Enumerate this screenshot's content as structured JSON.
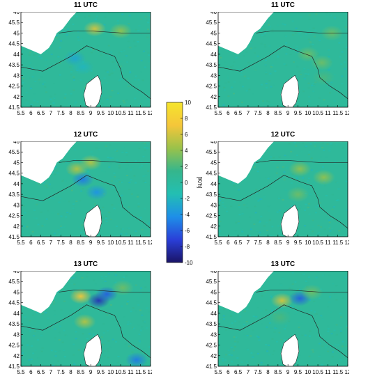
{
  "chart_data": {
    "type": "heatmap",
    "colorbar": {
      "label": "[K/h]",
      "range": [
        -10,
        10
      ],
      "ticks": [
        10,
        8,
        6,
        4,
        2,
        0,
        -2,
        -4,
        -6,
        -8,
        -10
      ],
      "colors": [
        "#1a1466",
        "#2a3fd8",
        "#1e8fe8",
        "#23bfb2",
        "#35b68c",
        "#9ac24a",
        "#f5c63a",
        "#f5e52c"
      ]
    },
    "x_ticks": [
      "5.5",
      "6",
      "6.5",
      "7",
      "7.5",
      "8",
      "8.5",
      "9",
      "9.5",
      "10",
      "10.5",
      "11",
      "11.5",
      "12"
    ],
    "y_ticks": [
      "46",
      "45.5",
      "45",
      "44.5",
      "44",
      "43.5",
      "43",
      "42.5",
      "42",
      "41.5"
    ],
    "xlim": [
      5.5,
      12
    ],
    "ylim": [
      41.5,
      46
    ],
    "panels": [
      {
        "title": "11 UTC",
        "hotspots": [
          {
            "lon": 9.2,
            "lat": 45.2,
            "v": 6
          },
          {
            "lon": 10.5,
            "lat": 45.1,
            "v": 4
          },
          {
            "lon": 8.2,
            "lat": 43.8,
            "v": -3
          },
          {
            "lon": 8.6,
            "lat": 43.4,
            "v": -2
          }
        ]
      },
      {
        "title": "11 UTC",
        "hotspots": [
          {
            "lon": 10.0,
            "lat": 44.0,
            "v": 3
          },
          {
            "lon": 11.2,
            "lat": 45.0,
            "v": 3
          },
          {
            "lon": 10.7,
            "lat": 43.6,
            "v": 3
          },
          {
            "lon": 10.8,
            "lat": 42.9,
            "v": 2
          }
        ]
      },
      {
        "title": "12 UTC",
        "hotspots": [
          {
            "lon": 8.3,
            "lat": 44.7,
            "v": 5
          },
          {
            "lon": 9.0,
            "lat": 45.0,
            "v": 5
          },
          {
            "lon": 8.6,
            "lat": 44.2,
            "v": -5
          },
          {
            "lon": 9.3,
            "lat": 43.6,
            "v": -4
          }
        ]
      },
      {
        "title": "12 UTC",
        "hotspots": [
          {
            "lon": 9.6,
            "lat": 44.7,
            "v": 4
          },
          {
            "lon": 10.8,
            "lat": 44.3,
            "v": 4
          },
          {
            "lon": 9.5,
            "lat": 43.5,
            "v": 3
          }
        ]
      },
      {
        "title": "13 UTC",
        "hotspots": [
          {
            "lon": 8.5,
            "lat": 44.8,
            "v": 7
          },
          {
            "lon": 8.7,
            "lat": 43.6,
            "v": 5
          },
          {
            "lon": 9.4,
            "lat": 44.6,
            "v": -8
          },
          {
            "lon": 9.8,
            "lat": 44.9,
            "v": -6
          },
          {
            "lon": 10.6,
            "lat": 45.2,
            "v": 3
          },
          {
            "lon": 11.3,
            "lat": 41.8,
            "v": -5
          }
        ]
      },
      {
        "title": "13 UTC",
        "hotspots": [
          {
            "lon": 8.7,
            "lat": 44.6,
            "v": 6
          },
          {
            "lon": 9.6,
            "lat": 44.7,
            "v": -6
          },
          {
            "lon": 10.2,
            "lat": 45.0,
            "v": 3
          },
          {
            "lon": 8.6,
            "lat": 43.8,
            "v": 2
          }
        ]
      }
    ]
  }
}
